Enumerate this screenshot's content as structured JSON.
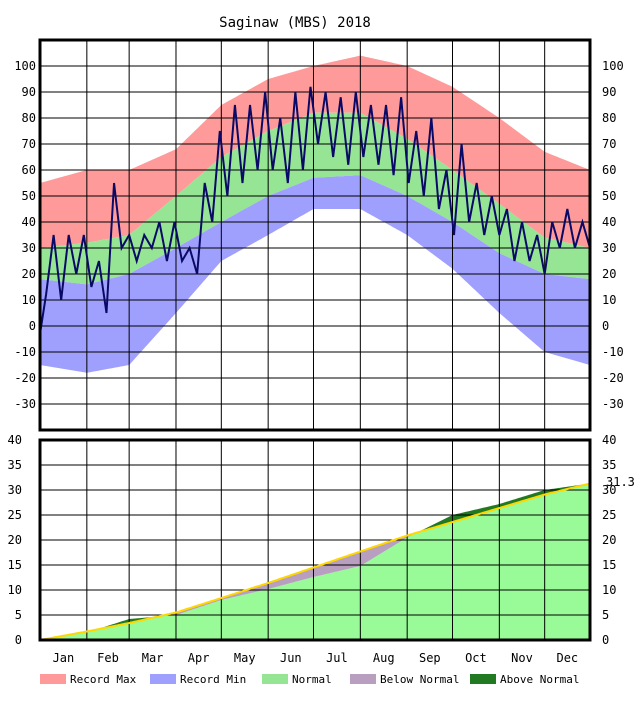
{
  "chart_data": [
    {
      "type": "area",
      "title": "Saginaw (MBS) 2018",
      "panel": "temperature",
      "units": "°F",
      "ylim": [
        -40,
        110
      ],
      "yticks": [
        100,
        90,
        80,
        70,
        60,
        50,
        40,
        30,
        20,
        10,
        0,
        -10,
        -20,
        -30
      ],
      "months": [
        "Jan",
        "Feb",
        "Mar",
        "Apr",
        "May",
        "Jun",
        "Jul",
        "Aug",
        "Sep",
        "Oct",
        "Nov",
        "Dec"
      ],
      "x_days": [
        1,
        32,
        60,
        91,
        121,
        152,
        182,
        213,
        244,
        274,
        305,
        335,
        365
      ],
      "record_max": [
        55,
        60,
        60,
        68,
        85,
        95,
        100,
        104,
        100,
        92,
        80,
        67,
        60
      ],
      "normal_high": [
        30,
        32,
        35,
        50,
        65,
        75,
        82,
        82,
        72,
        60,
        47,
        34,
        30
      ],
      "normal_low": [
        18,
        16,
        20,
        30,
        40,
        50,
        57,
        58,
        50,
        40,
        28,
        20,
        18
      ],
      "record_min": [
        -15,
        -18,
        -15,
        5,
        25,
        35,
        45,
        45,
        35,
        22,
        5,
        -10,
        -15
      ],
      "daily_temp_observed": [
        {
          "day": 1,
          "value": -3
        },
        {
          "day": 5,
          "value": 12
        },
        {
          "day": 10,
          "value": 35
        },
        {
          "day": 15,
          "value": 10
        },
        {
          "day": 20,
          "value": 35
        },
        {
          "day": 25,
          "value": 20
        },
        {
          "day": 30,
          "value": 35
        },
        {
          "day": 35,
          "value": 15
        },
        {
          "day": 40,
          "value": 25
        },
        {
          "day": 45,
          "value": 5
        },
        {
          "day": 50,
          "value": 55
        },
        {
          "day": 55,
          "value": 30
        },
        {
          "day": 60,
          "value": 35
        },
        {
          "day": 65,
          "value": 25
        },
        {
          "day": 70,
          "value": 35
        },
        {
          "day": 75,
          "value": 30
        },
        {
          "day": 80,
          "value": 40
        },
        {
          "day": 85,
          "value": 25
        },
        {
          "day": 90,
          "value": 40
        },
        {
          "day": 95,
          "value": 25
        },
        {
          "day": 100,
          "value": 30
        },
        {
          "day": 105,
          "value": 20
        },
        {
          "day": 110,
          "value": 55
        },
        {
          "day": 115,
          "value": 40
        },
        {
          "day": 120,
          "value": 75
        },
        {
          "day": 125,
          "value": 50
        },
        {
          "day": 130,
          "value": 85
        },
        {
          "day": 135,
          "value": 55
        },
        {
          "day": 140,
          "value": 85
        },
        {
          "day": 145,
          "value": 60
        },
        {
          "day": 150,
          "value": 90
        },
        {
          "day": 155,
          "value": 60
        },
        {
          "day": 160,
          "value": 80
        },
        {
          "day": 165,
          "value": 55
        },
        {
          "day": 170,
          "value": 90
        },
        {
          "day": 175,
          "value": 60
        },
        {
          "day": 180,
          "value": 92
        },
        {
          "day": 185,
          "value": 70
        },
        {
          "day": 190,
          "value": 90
        },
        {
          "day": 195,
          "value": 65
        },
        {
          "day": 200,
          "value": 88
        },
        {
          "day": 205,
          "value": 62
        },
        {
          "day": 210,
          "value": 90
        },
        {
          "day": 215,
          "value": 65
        },
        {
          "day": 220,
          "value": 85
        },
        {
          "day": 225,
          "value": 62
        },
        {
          "day": 230,
          "value": 85
        },
        {
          "day": 235,
          "value": 58
        },
        {
          "day": 240,
          "value": 88
        },
        {
          "day": 245,
          "value": 55
        },
        {
          "day": 250,
          "value": 75
        },
        {
          "day": 255,
          "value": 50
        },
        {
          "day": 260,
          "value": 80
        },
        {
          "day": 265,
          "value": 45
        },
        {
          "day": 270,
          "value": 60
        },
        {
          "day": 275,
          "value": 35
        },
        {
          "day": 280,
          "value": 70
        },
        {
          "day": 285,
          "value": 40
        },
        {
          "day": 290,
          "value": 55
        },
        {
          "day": 295,
          "value": 35
        },
        {
          "day": 300,
          "value": 50
        },
        {
          "day": 305,
          "value": 35
        },
        {
          "day": 310,
          "value": 45
        },
        {
          "day": 315,
          "value": 25
        },
        {
          "day": 320,
          "value": 40
        },
        {
          "day": 325,
          "value": 25
        },
        {
          "day": 330,
          "value": 35
        },
        {
          "day": 335,
          "value": 20
        },
        {
          "day": 340,
          "value": 40
        },
        {
          "day": 345,
          "value": 30
        },
        {
          "day": 350,
          "value": 45
        },
        {
          "day": 355,
          "value": 30
        },
        {
          "day": 360,
          "value": 40
        },
        {
          "day": 365,
          "value": 30
        }
      ]
    },
    {
      "type": "area",
      "panel": "precipitation",
      "units": "in",
      "ylim": [
        0,
        40
      ],
      "yticks": [
        40,
        35,
        30,
        25,
        20,
        15,
        10,
        5,
        0
      ],
      "months": [
        "Jan",
        "Feb",
        "Mar",
        "Apr",
        "May",
        "Jun",
        "Jul",
        "Aug",
        "Sep",
        "Oct",
        "Nov",
        "Dec"
      ],
      "x_days": [
        1,
        32,
        60,
        91,
        121,
        152,
        182,
        213,
        244,
        274,
        305,
        335,
        365
      ],
      "normal_cumulative": [
        0,
        1.7,
        3.4,
        5.5,
        8.4,
        11.4,
        14.5,
        17.7,
        20.9,
        23.6,
        26.4,
        29.1,
        31.3
      ],
      "observed_cumulative": [
        0,
        1.5,
        4.2,
        5.0,
        8.0,
        10.2,
        12.6,
        14.8,
        20.5,
        25.0,
        27.2,
        30.0,
        31.3
      ],
      "year_total_label": "31.3"
    }
  ],
  "legend": [
    {
      "label": "Record Max",
      "color": "#ff9a9a"
    },
    {
      "label": "Record Min",
      "color": "#9f9ffd"
    },
    {
      "label": "Normal",
      "color": "#95e595"
    },
    {
      "label": "Below Normal",
      "color": "#b89fc0"
    },
    {
      "label": "Above Normal",
      "color": "#217a21"
    }
  ],
  "colors": {
    "record_max": "#ff9a9a",
    "record_min": "#9f9ffd",
    "normal": "#95e595",
    "observed_line": "#0a0a66",
    "precip_normal_fill": "#98fb98",
    "precip_line": "#ffd700"
  }
}
